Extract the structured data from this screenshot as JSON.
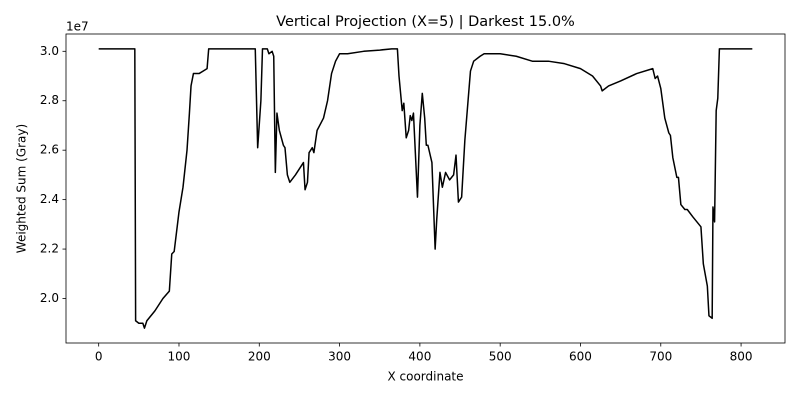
{
  "chart_data": {
    "type": "line",
    "title": "Vertical Projection (X=5) | Darkest 15.0%",
    "x_label": "X coordinate",
    "y_label": "Weighted Sum (Gray)",
    "y_offset_label": "1e7",
    "color": "#000000",
    "grid": false,
    "xlim": [
      -40.7,
      854.7
    ],
    "ylim": [
      1.82,
      3.07
    ],
    "xticks": [
      0,
      100,
      200,
      300,
      400,
      500,
      600,
      700,
      800
    ],
    "yticks": [
      {
        "value": 2,
        "label": "2.0"
      },
      {
        "value": 2.2,
        "label": "2.2"
      },
      {
        "value": 2.4,
        "label": "2.4"
      },
      {
        "value": 2.6,
        "label": "2.6"
      },
      {
        "value": 2.8,
        "label": "2.8"
      },
      {
        "value": 3,
        "label": "3.0"
      }
    ],
    "x": [
      0,
      45,
      46,
      50,
      55,
      57,
      60,
      70,
      80,
      88,
      91,
      94,
      100,
      105,
      110,
      113,
      115,
      118,
      125,
      130,
      135,
      137,
      195,
      198,
      202,
      204,
      210,
      212,
      216,
      218,
      220,
      222,
      225,
      230,
      232,
      235,
      238,
      245,
      255,
      257,
      260,
      262,
      266,
      268,
      272,
      280,
      285,
      290,
      295,
      300,
      310,
      330,
      350,
      365,
      372,
      374,
      378,
      380,
      383,
      386,
      388,
      390,
      392,
      397,
      400,
      403,
      406,
      408,
      410,
      415,
      419,
      421,
      425,
      428,
      432,
      437,
      442,
      445,
      448,
      452,
      456,
      460,
      463,
      467,
      475,
      480,
      500,
      520,
      540,
      560,
      580,
      600,
      615,
      625,
      627,
      635,
      650,
      670,
      690,
      693,
      696,
      700,
      705,
      710,
      712,
      715,
      720,
      722,
      725,
      730,
      733,
      740,
      750,
      753,
      758,
      760,
      764,
      765,
      767,
      769,
      771,
      773,
      814
    ],
    "values": [
      3.01,
      3.01,
      1.91,
      1.9,
      1.9,
      1.88,
      1.91,
      1.95,
      2,
      2.03,
      2.18,
      2.19,
      2.35,
      2.45,
      2.6,
      2.75,
      2.86,
      2.91,
      2.91,
      2.92,
      2.93,
      3.01,
      3.01,
      2.61,
      2.8,
      3.01,
      3.01,
      2.99,
      3,
      2.98,
      2.51,
      2.75,
      2.68,
      2.62,
      2.61,
      2.5,
      2.47,
      2.5,
      2.55,
      2.44,
      2.47,
      2.59,
      2.61,
      2.59,
      2.68,
      2.73,
      2.8,
      2.91,
      2.96,
      2.99,
      2.99,
      3,
      3.005,
      3.01,
      3.01,
      2.9,
      2.76,
      2.79,
      2.65,
      2.68,
      2.74,
      2.72,
      2.75,
      2.41,
      2.7,
      2.83,
      2.73,
      2.62,
      2.62,
      2.55,
      2.2,
      2.32,
      2.51,
      2.45,
      2.51,
      2.48,
      2.5,
      2.58,
      2.39,
      2.41,
      2.64,
      2.8,
      2.92,
      2.96,
      2.98,
      2.99,
      2.99,
      2.98,
      2.96,
      2.96,
      2.95,
      2.93,
      2.9,
      2.86,
      2.84,
      2.86,
      2.88,
      2.91,
      2.93,
      2.89,
      2.9,
      2.85,
      2.73,
      2.67,
      2.66,
      2.57,
      2.49,
      2.49,
      2.38,
      2.36,
      2.36,
      2.33,
      2.29,
      2.14,
      2.05,
      1.93,
      1.92,
      2.37,
      2.31,
      2.76,
      2.81,
      3.01,
      3.01
    ]
  }
}
